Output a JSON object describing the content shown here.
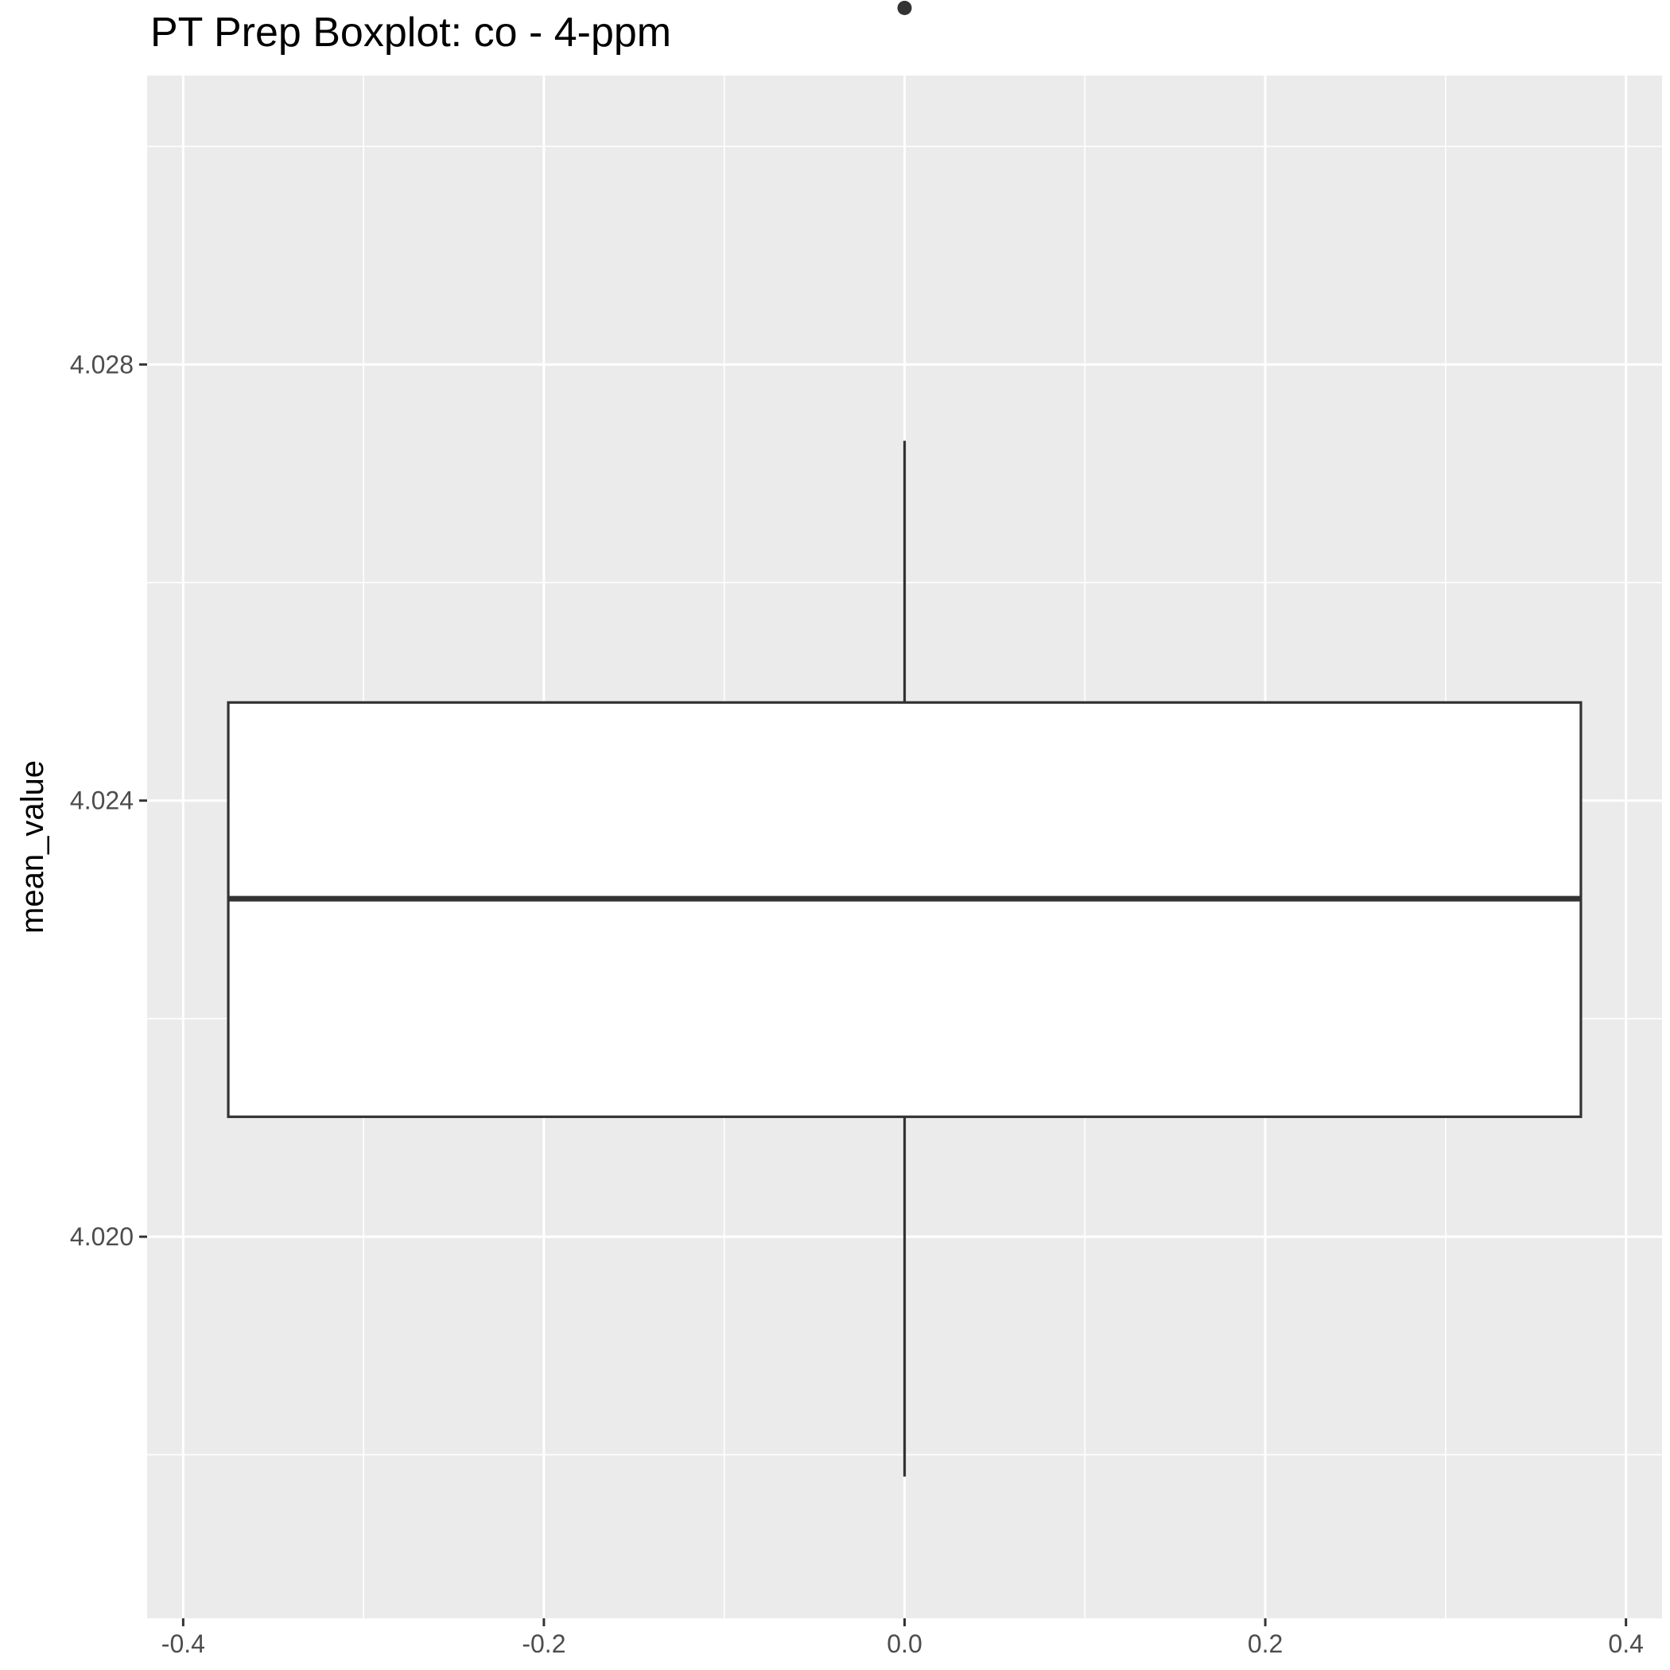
{
  "chart_data": {
    "type": "boxplot",
    "title": "PT Prep Boxplot: co - 4-ppm",
    "xlabel": "",
    "ylabel": "mean_value",
    "xlim": [
      -0.42,
      0.42
    ],
    "ylim": [
      4.0165,
      4.03065
    ],
    "x_ticks": [
      -0.4,
      -0.2,
      0.0,
      0.2,
      0.4
    ],
    "x_tick_labels": [
      "-0.4",
      "-0.2",
      "0.0",
      "0.2",
      "0.4"
    ],
    "y_ticks": [
      4.02,
      4.024,
      4.028
    ],
    "y_tick_labels": [
      "4.020",
      "4.024",
      "4.028"
    ],
    "grid": true,
    "box": {
      "x": 0.0,
      "x_left": -0.375,
      "x_right": 0.375,
      "whisker_low": 4.0178,
      "q1": 4.0211,
      "median": 4.0231,
      "q3": 4.0249,
      "whisker_high": 4.0273,
      "outliers": [
        4.03127
      ]
    },
    "colors": {
      "panel_background": "#ebebeb",
      "grid": "#ffffff",
      "box_fill": "#ffffff",
      "box_line": "#333333",
      "tick_text": "#4d4d4d"
    }
  }
}
